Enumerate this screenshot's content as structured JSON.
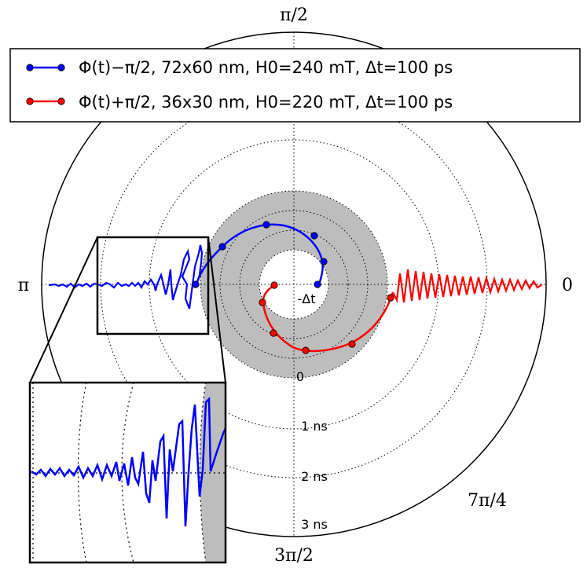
{
  "chart_data": {
    "type": "line",
    "projection": "polar",
    "angle_labels": {
      "top": "π/2",
      "left": "π",
      "right": "0",
      "bottom": "3π/2",
      "lower_right": "7π/4"
    },
    "radial_tick_labels": [
      "-Δt",
      "0",
      "1 ns",
      "2 ns",
      "3 ns"
    ],
    "radial_range_ns": [
      -1,
      3
    ],
    "shaded_band_ns": [
      -1,
      0
    ],
    "grid": true,
    "legend": {
      "placement": "top",
      "entries": [
        "Φ(t)−π/2, 72x60 nm, H0=240 mT, Δt=100 ps",
        "Φ(t)+π/2, 36x30 nm, H0=220 mT, Δt=100 ps"
      ]
    },
    "inset": {
      "type": "zoom",
      "source": "left region near π"
    },
    "series": [
      {
        "color": "#0000ff",
        "marker": "circle",
        "description_key": "legend.0"
      },
      {
        "color": "#ff0000",
        "marker": "circle",
        "description_key": "legend.1"
      }
    ]
  }
}
